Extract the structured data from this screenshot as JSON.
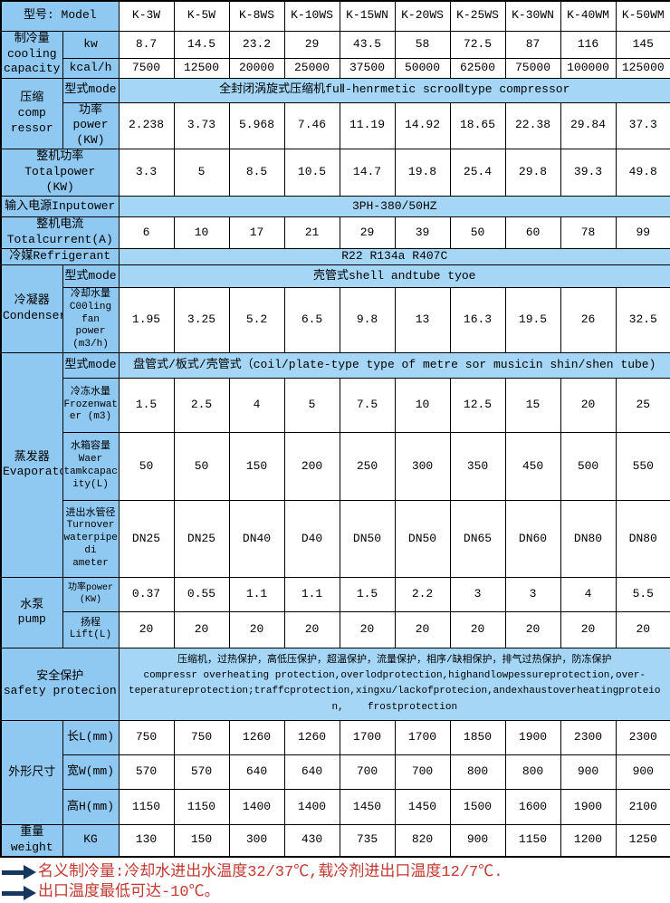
{
  "colors": {
    "label_blue": "#8fc8f0",
    "merged_blue": "#a5d6f6",
    "note_red": "#c2382f",
    "arrow_navy": "#17375e",
    "grid": "#000000"
  },
  "table": {
    "header": {
      "label": "型号: Model",
      "models": [
        "K-3W",
        "K-5W",
        "K-8WS",
        "K-10WS",
        "K-15WN",
        "K-20WS",
        "K-25WS",
        "K-30WN",
        "K-40WM",
        "K-50WM"
      ]
    },
    "cooling": {
      "group": "制冷量\ncooling\ncapacity",
      "kw_label": "kw",
      "kw": [
        "8.7",
        "14.5",
        "23.2",
        "29",
        "43.5",
        "58",
        "72.5",
        "87",
        "116",
        "145"
      ],
      "kcal_label": "kcal/h",
      "kcal": [
        "7500",
        "12500",
        "20000",
        "25000",
        "37500",
        "50000",
        "62500",
        "75000",
        "100000",
        "125000"
      ]
    },
    "compressor": {
      "group": "压缩\ncomp\nressor",
      "mode_label": "型式mode",
      "mode": "全封闭涡旋式压缩机fuⅡ-henrmetic scrooⅡtype compressor",
      "power_label": "功率\npower\n(KW)",
      "power": [
        "2.238",
        "3.73",
        "5.968",
        "7.46",
        "11.19",
        "14.92",
        "18.65",
        "22.38",
        "29.84",
        "37.3"
      ]
    },
    "total_power": {
      "label": "整机功率\nTotalpower\n(KW)",
      "values": [
        "3.3",
        "5",
        "8.5",
        "10.5",
        "14.7",
        "19.8",
        "25.4",
        "29.8",
        "39.3",
        "49.8"
      ]
    },
    "input_power": {
      "label": "输入电源Inputower",
      "value": "3PH-380/50HZ"
    },
    "total_current": {
      "label": "整机电流\nTotalcurrent(A)",
      "values": [
        "6",
        "10",
        "17",
        "21",
        "29",
        "39",
        "50",
        "60",
        "78",
        "99"
      ]
    },
    "refrigerant": {
      "label": "冷媒Refrigerant",
      "value": "R22 R134a R407C"
    },
    "condenser": {
      "group": "冷凝器\nCondenser",
      "mode_label": "型式mode",
      "mode": "壳管式shell andtube tyoe",
      "water_label": "冷却水量\nC00ling\nfan power\n(m3/h)",
      "water": [
        "1.95",
        "3.25",
        "5.2",
        "6.5",
        "9.8",
        "13",
        "16.3",
        "19.5",
        "26",
        "32.5"
      ]
    },
    "evaporator": {
      "group": "蒸发器\nEvaporator",
      "mode_label": "型式mode",
      "mode": "盘管式/板式/壳管式（coil/plate-type type of metre sor musicin shin/shen tube)",
      "frozen_label": "冷冻水量\nFrozenwat\ner (m3)",
      "frozen": [
        "1.5",
        "2.5",
        "4",
        "5",
        "7.5",
        "10",
        "12.5",
        "15",
        "20",
        "25"
      ],
      "tank_label": "水箱容量\nWaer\ntamkcapac\nity(L)",
      "tank": [
        "50",
        "50",
        "150",
        "200",
        "250",
        "300",
        "350",
        "450",
        "500",
        "550"
      ],
      "pipe_label": "进出水管径\nTurnover\nwaterpipe\ndi ameter",
      "pipe": [
        "DN25",
        "DN25",
        "DN40",
        "D40",
        "DN50",
        "DN50",
        "DN65",
        "DN60",
        "DN80",
        "DN80"
      ]
    },
    "pump": {
      "group": "水泵\npump",
      "power_label": "功率power\n(KW)",
      "power": [
        "0.37",
        "0.55",
        "1.1",
        "1.1",
        "1.5",
        "2.2",
        "3",
        "3",
        "4",
        "5.5"
      ],
      "lift_label": "扬程\nLift(L)",
      "lift": [
        "20",
        "20",
        "20",
        "20",
        "20",
        "20",
        "20",
        "20",
        "20",
        "20"
      ]
    },
    "safety": {
      "label": "安全保护\nsafety protecion",
      "content": "压缩机，过热保护，高低压保护，超温保护，流量保护，相序/缺相保护，排气过热保护，防冻保护\ncompressr overheating protection,overlodprotection,highandlowpessureprotection,over-\nteperatureprotection;traffcprotection,xingxu/lackofprotecion,andexhaustoverheatingproteio\nn,    frostprotection"
    },
    "dimensions": {
      "group": "外形尺寸",
      "length_label": "长L(mm)",
      "length": [
        "750",
        "750",
        "1260",
        "1260",
        "1700",
        "1700",
        "1850",
        "1900",
        "2300",
        "2300"
      ],
      "width_label": "宽W(mm)",
      "width": [
        "570",
        "570",
        "640",
        "640",
        "700",
        "700",
        "800",
        "800",
        "900",
        "900"
      ],
      "height_label": "高H(mm)",
      "height": [
        "1150",
        "1150",
        "1400",
        "1400",
        "1450",
        "1450",
        "1500",
        "1600",
        "1900",
        "2100"
      ]
    },
    "weight": {
      "group": "重量\nweight",
      "unit_label": "KG",
      "values": [
        "130",
        "150",
        "300",
        "430",
        "735",
        "820",
        "900",
        "1150",
        "1200",
        "1250"
      ]
    }
  },
  "notes": [
    {
      "text": "名义制冷量:冷却水进出水温度32/37℃,载冷剂进出口温度12/7℃."
    },
    {
      "text": "出口温度最低可达-10℃。"
    }
  ]
}
